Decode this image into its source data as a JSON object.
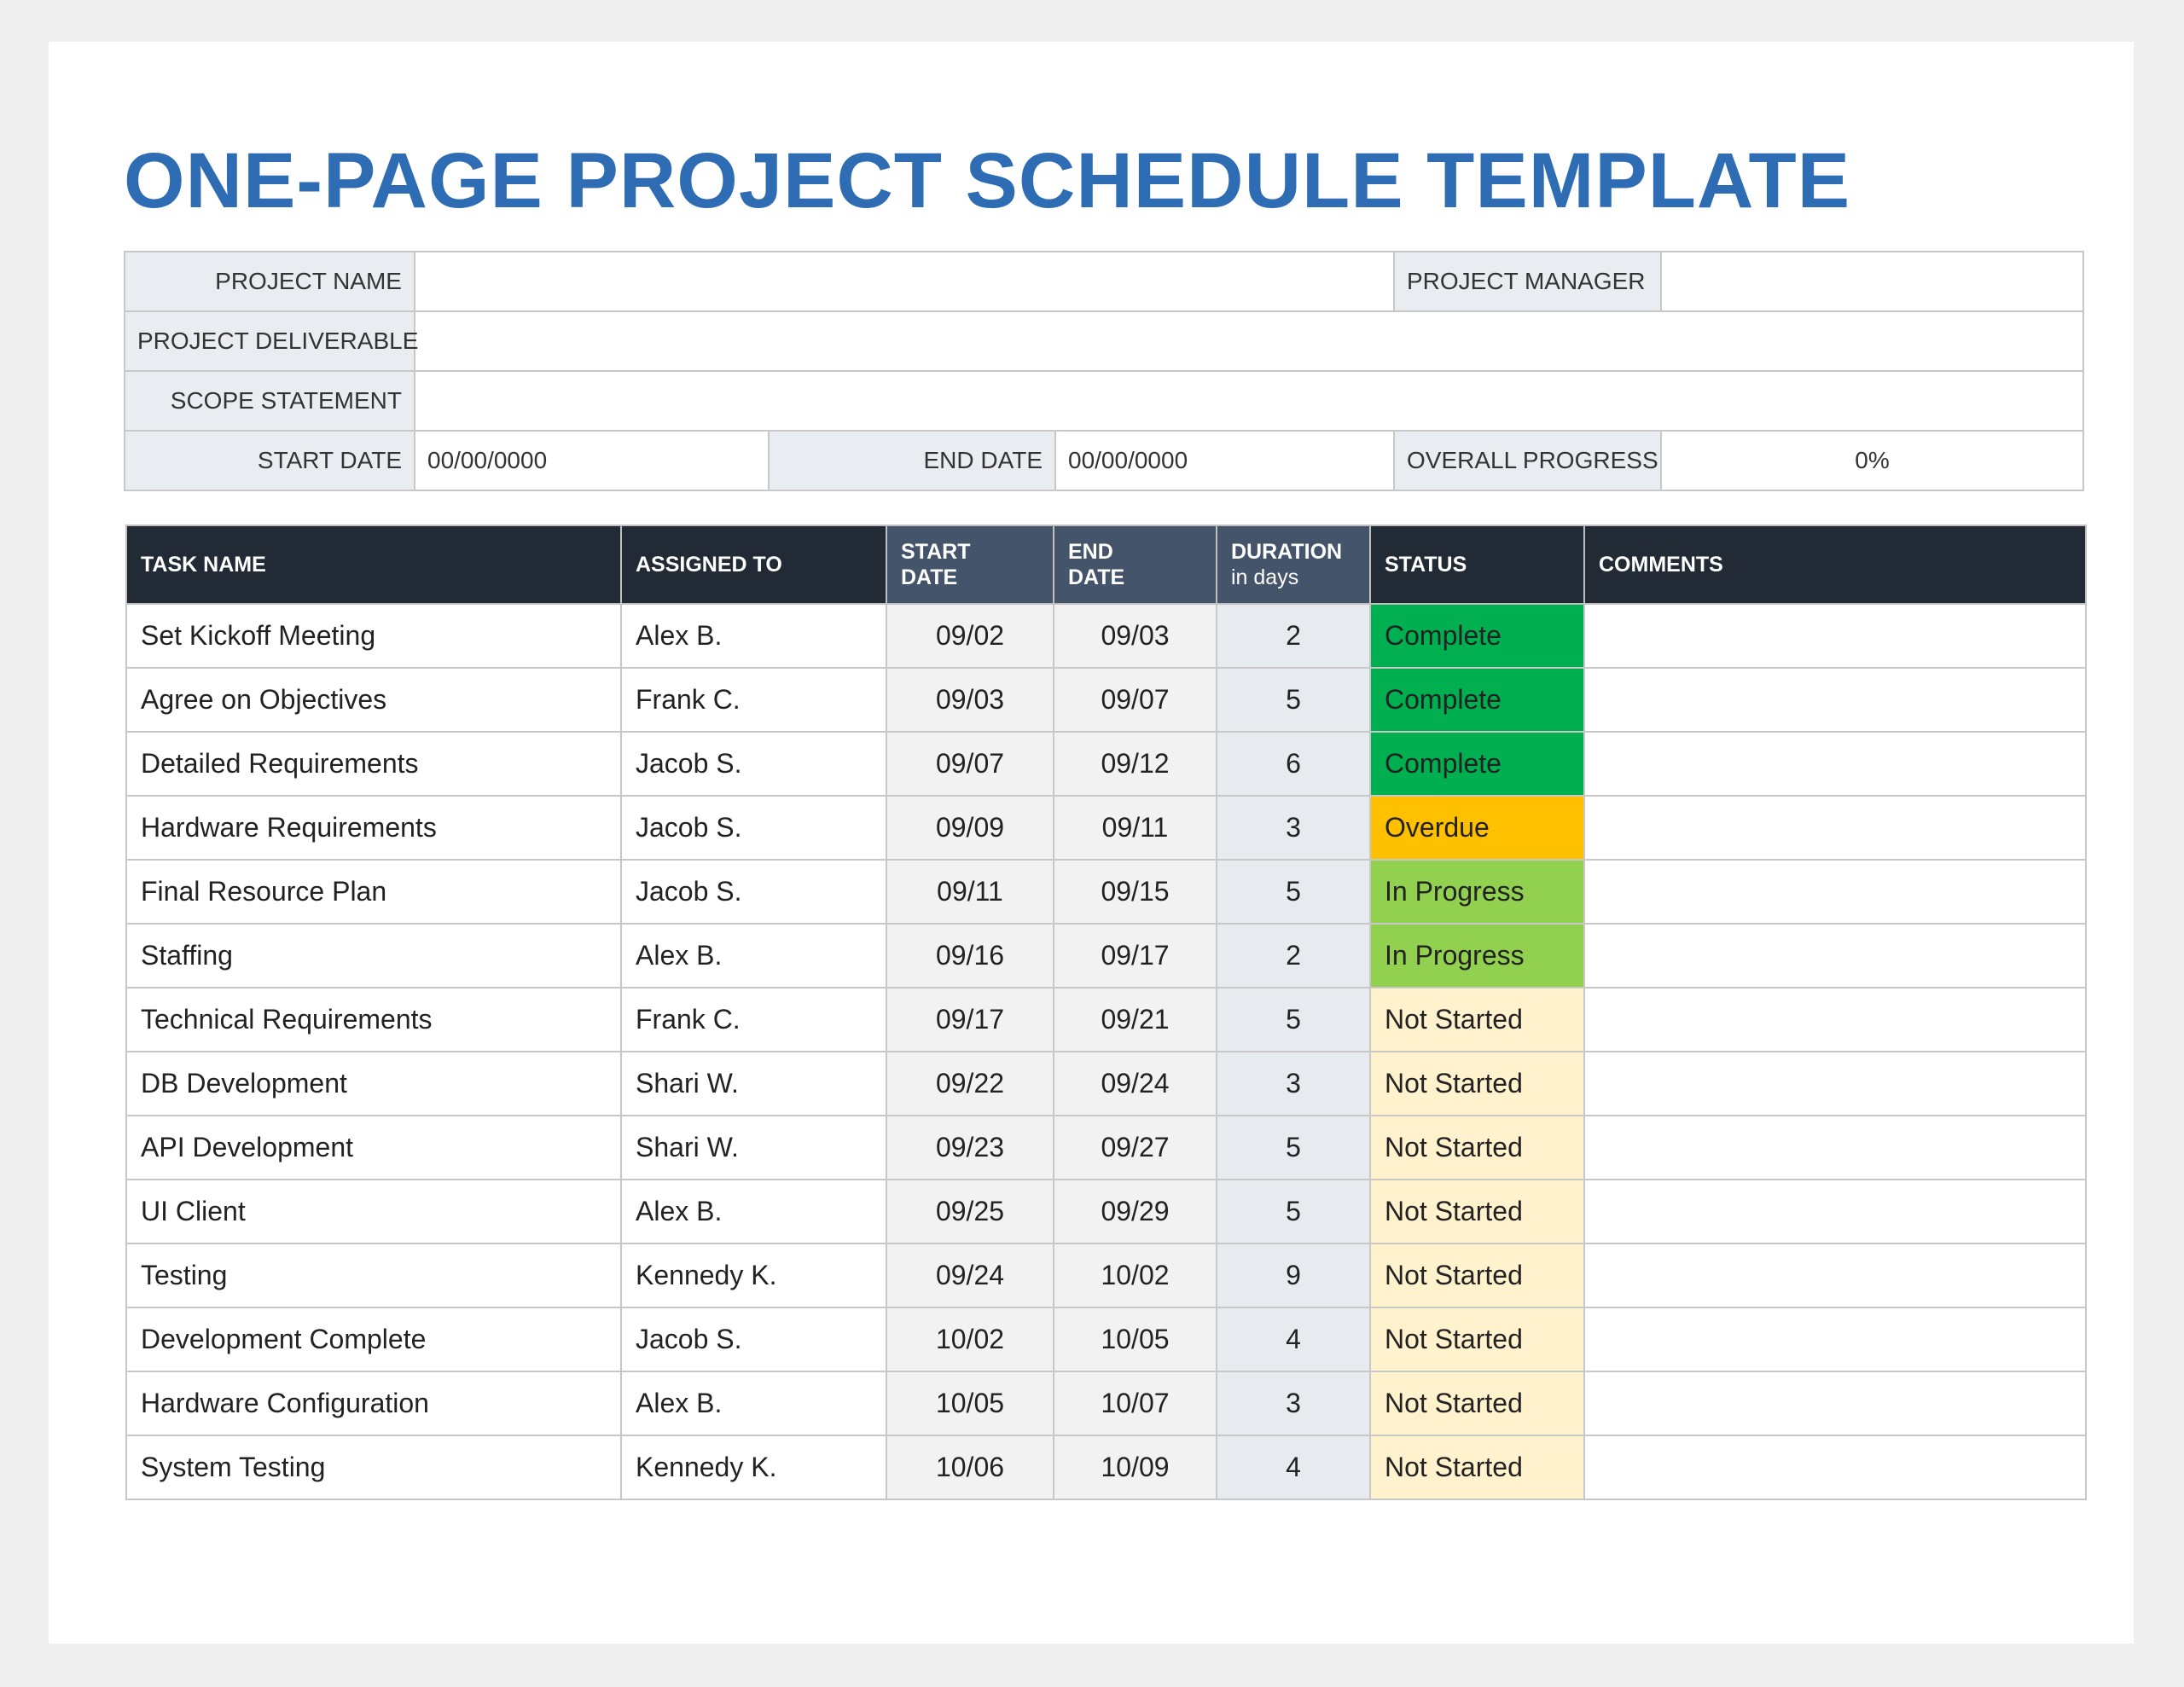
{
  "header": {
    "title": "ONE-PAGE PROJECT SCHEDULE TEMPLATE"
  },
  "project_info": {
    "project_name_label": "PROJECT NAME",
    "project_manager_label": "PROJECT MANAGER",
    "project_deliverable_label": "PROJECT DELIVERABLE",
    "scope_statement_label": "SCOPE STATEMENT",
    "start_date_label": "START DATE",
    "start_date": "00/00/0000",
    "end_date_label": "END DATE",
    "end_date": "00/00/0000",
    "overall_progress_label": "OVERALL PROGRESS",
    "overall_progress": "0%"
  },
  "table": {
    "columns": [
      {
        "label": "TASK NAME"
      },
      {
        "label": "ASSIGNED TO"
      },
      {
        "label": "START DATE"
      },
      {
        "label": "END DATE"
      },
      {
        "label": "DURATION",
        "sublabel": "in days"
      },
      {
        "label": "STATUS"
      },
      {
        "label": "COMMENTS"
      }
    ],
    "status_colors": {
      "Complete": "#00b050",
      "Overdue": "#ffc000",
      "In Progress": "#92d050",
      "Not Started": "#fff2cc"
    },
    "rows": [
      [
        "Set Kickoff Meeting",
        "Alex B.",
        "09/02",
        "09/03",
        2,
        "Complete"
      ],
      [
        "Agree on Objectives",
        "Frank C.",
        "09/03",
        "09/07",
        5,
        "Complete"
      ],
      [
        "Detailed Requirements",
        "Jacob S.",
        "09/07",
        "09/12",
        6,
        "Complete"
      ],
      [
        "Hardware Requirements",
        "Jacob S.",
        "09/09",
        "09/11",
        3,
        "Overdue"
      ],
      [
        "Final Resource Plan",
        "Jacob S.",
        "09/11",
        "09/15",
        5,
        "In Progress"
      ],
      [
        "Staffing",
        "Alex B.",
        "09/16",
        "09/17",
        2,
        "In Progress"
      ],
      [
        "Technical Requirements",
        "Frank C.",
        "09/17",
        "09/21",
        5,
        "Not Started"
      ],
      [
        "DB Development",
        "Shari W.",
        "09/22",
        "09/24",
        3,
        "Not Started"
      ],
      [
        "API Development",
        "Shari W.",
        "09/23",
        "09/27",
        5,
        "Not Started"
      ],
      [
        "UI Client",
        "Alex B.",
        "09/25",
        "09/29",
        5,
        "Not Started"
      ],
      [
        "Testing",
        "Kennedy K.",
        "09/24",
        "10/02",
        9,
        "Not Started"
      ],
      [
        "Development Complete",
        "Jacob S.",
        "10/02",
        "10/05",
        4,
        "Not Started"
      ],
      [
        "Hardware Configuration",
        "Alex B.",
        "10/05",
        "10/07",
        3,
        "Not Started"
      ],
      [
        "System Testing",
        "Kennedy K.",
        "10/06",
        "10/09",
        4,
        "Not Started"
      ]
    ]
  }
}
